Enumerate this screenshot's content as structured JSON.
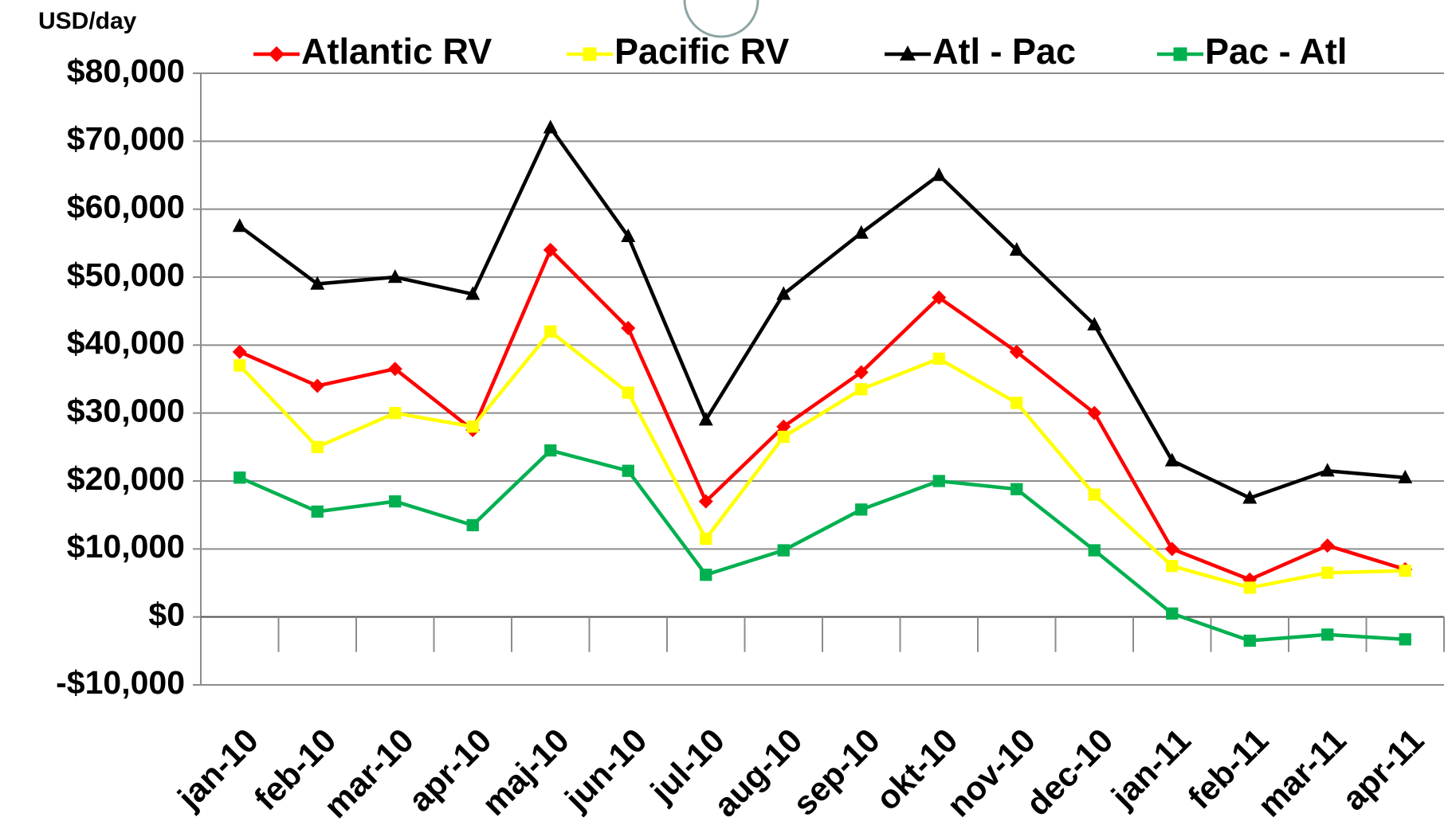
{
  "chart_data": {
    "type": "line",
    "y_axis_label": "USD/day",
    "categories": [
      "jan-10",
      "feb-10",
      "mar-10",
      "apr-10",
      "maj-10",
      "jun-10",
      "jul-10",
      "aug-10",
      "sep-10",
      "okt-10",
      "nov-10",
      "dec-10",
      "jan-11",
      "feb-11",
      "mar-11",
      "apr-11"
    ],
    "series": [
      {
        "name": "Atlantic RV",
        "color": "#ff0000",
        "marker": "diamond",
        "values": [
          39000,
          34000,
          36500,
          27500,
          54000,
          42500,
          17000,
          28000,
          36000,
          47000,
          39000,
          30000,
          10000,
          5500,
          10500,
          7000
        ]
      },
      {
        "name": "Pacific RV",
        "color": "#ffff00",
        "marker": "square",
        "values": [
          37000,
          25000,
          30000,
          28000,
          42000,
          33000,
          11500,
          26500,
          33500,
          38000,
          31500,
          18000,
          7500,
          4300,
          6500,
          6800
        ]
      },
      {
        "name": "Atl - Pac",
        "color": "#000000",
        "marker": "triangle",
        "values": [
          57500,
          49000,
          50000,
          47500,
          72000,
          56000,
          29000,
          47500,
          56500,
          65000,
          54000,
          43000,
          23000,
          17500,
          21500,
          20500
        ]
      },
      {
        "name": "Pac - Atl",
        "color": "#00b050",
        "marker": "square",
        "values": [
          20500,
          15500,
          17000,
          13500,
          24500,
          21500,
          6200,
          9800,
          15800,
          20000,
          18800,
          9800,
          500,
          -3500,
          -2600,
          -3300
        ]
      }
    ],
    "ylim": [
      -10000,
      80000
    ],
    "yticks": [
      {
        "value": -10000,
        "label": "-$10,000"
      },
      {
        "value": 0,
        "label": "$0"
      },
      {
        "value": 10000,
        "label": "$10,000"
      },
      {
        "value": 20000,
        "label": "$20,000"
      },
      {
        "value": 30000,
        "label": "$30,000"
      },
      {
        "value": 40000,
        "label": "$40,000"
      },
      {
        "value": 50000,
        "label": "$50,000"
      },
      {
        "value": 60000,
        "label": "$60,000"
      },
      {
        "value": 70000,
        "label": "$70,000"
      },
      {
        "value": 80000,
        "label": "$80,000"
      }
    ],
    "grid": true,
    "legend": "top"
  }
}
